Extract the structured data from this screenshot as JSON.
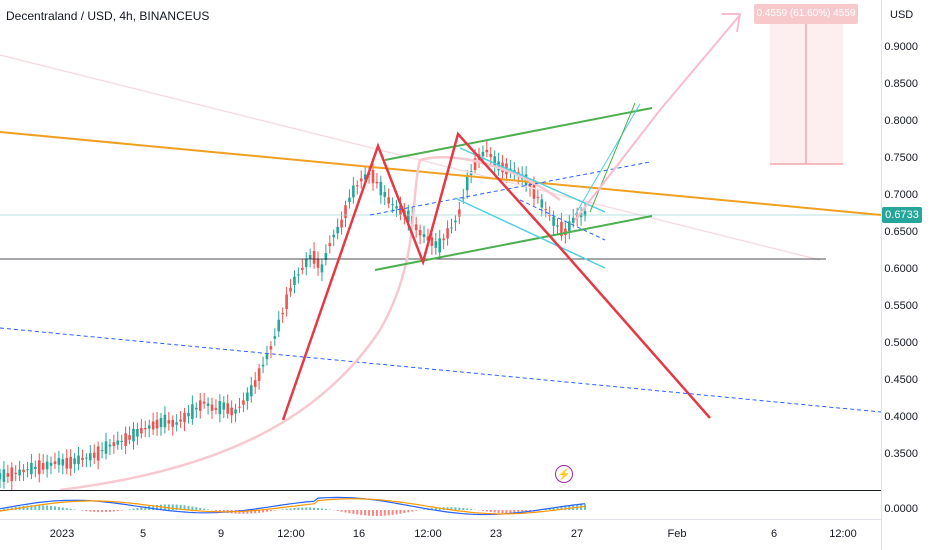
{
  "header": {
    "title": "Decentraland / USD, 4h, BINANCEUS"
  },
  "price_axis": {
    "currency": "USD",
    "ticks": [
      "0.9000",
      "0.8500",
      "0.8000",
      "0.7500",
      "0.7000",
      "0.6500",
      "0.6000",
      "0.5500",
      "0.5000",
      "0.4500",
      "0.4000",
      "0.3500"
    ],
    "macd_tick": "0.0000",
    "current_price": "0.6733",
    "current_price_color": "#26a69a"
  },
  "time_axis": {
    "ticks": [
      "2023",
      "5",
      "9",
      "12:00",
      "16",
      "12:00",
      "23",
      "27",
      "Feb",
      "6",
      "12:00"
    ]
  },
  "drawings": {
    "measure_label": "0.4559 (61.60%) 4559",
    "colors": {
      "trend_orange": "#f0a020",
      "zigzag_red": "#e53945",
      "channel_green": "#4caf50",
      "channel_cyan": "#4dd0e1",
      "dashed_blue": "#2962ff",
      "arrow_pink": "#f8bbd0"
    }
  },
  "indicators": {
    "alert_icon": "lightning-icon"
  },
  "chart_data": {
    "type": "candlestick",
    "title": "Decentraland / USD, 4h, BINANCEUS",
    "ylim": [
      0.31,
      0.95
    ],
    "y_ticks": [
      0.35,
      0.4,
      0.45,
      0.5,
      0.55,
      0.6,
      0.65,
      0.7,
      0.75,
      0.8,
      0.85,
      0.9
    ],
    "last_price": 0.6733,
    "path": [
      0.32,
      0.322,
      0.325,
      0.33,
      0.332,
      0.335,
      0.34,
      0.337,
      0.342,
      0.345,
      0.35,
      0.36,
      0.365,
      0.37,
      0.378,
      0.385,
      0.39,
      0.395,
      0.39,
      0.4,
      0.41,
      0.42,
      0.41,
      0.415,
      0.405,
      0.42,
      0.44,
      0.47,
      0.5,
      0.54,
      0.58,
      0.6,
      0.62,
      0.6,
      0.64,
      0.66,
      0.7,
      0.72,
      0.73,
      0.71,
      0.69,
      0.68,
      0.67,
      0.65,
      0.64,
      0.63,
      0.65,
      0.67,
      0.72,
      0.75,
      0.76,
      0.74,
      0.735,
      0.73,
      0.72,
      0.7,
      0.68,
      0.66,
      0.65,
      0.67,
      0.675
    ]
  }
}
